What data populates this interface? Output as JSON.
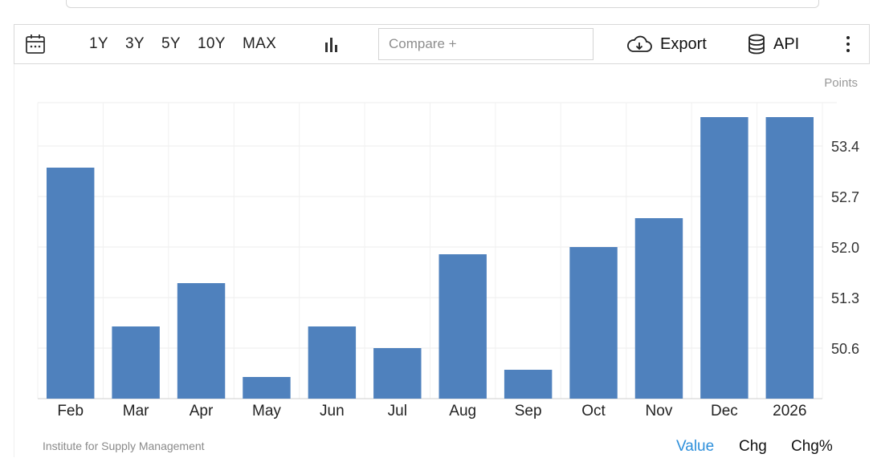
{
  "toolbar": {
    "ranges": [
      "1Y",
      "3Y",
      "5Y",
      "10Y",
      "MAX"
    ],
    "compare_placeholder": "Compare +",
    "export_label": "Export",
    "api_label": "API"
  },
  "footer": {
    "source": "Institute for Supply Management",
    "tabs": [
      "Value",
      "Chg",
      "Chg%"
    ],
    "active_tab": "Value"
  },
  "colors": {
    "bar": "#4f81bd",
    "accent": "#2d8fdb"
  },
  "chart_data": {
    "type": "bar",
    "unit_label": "Points",
    "categories": [
      "Feb",
      "Mar",
      "Apr",
      "May",
      "Jun",
      "Jul",
      "Aug",
      "Sep",
      "Oct",
      "Nov",
      "Dec",
      "2026"
    ],
    "values": [
      53.1,
      50.9,
      51.5,
      50.2,
      50.9,
      50.6,
      51.9,
      50.3,
      52.0,
      52.4,
      53.8,
      53.8
    ],
    "ylim": [
      49.9,
      54.0
    ],
    "yticks": [
      50.6,
      51.3,
      52.0,
      52.7,
      53.4
    ],
    "y_axis_position": "right",
    "grid": true
  }
}
